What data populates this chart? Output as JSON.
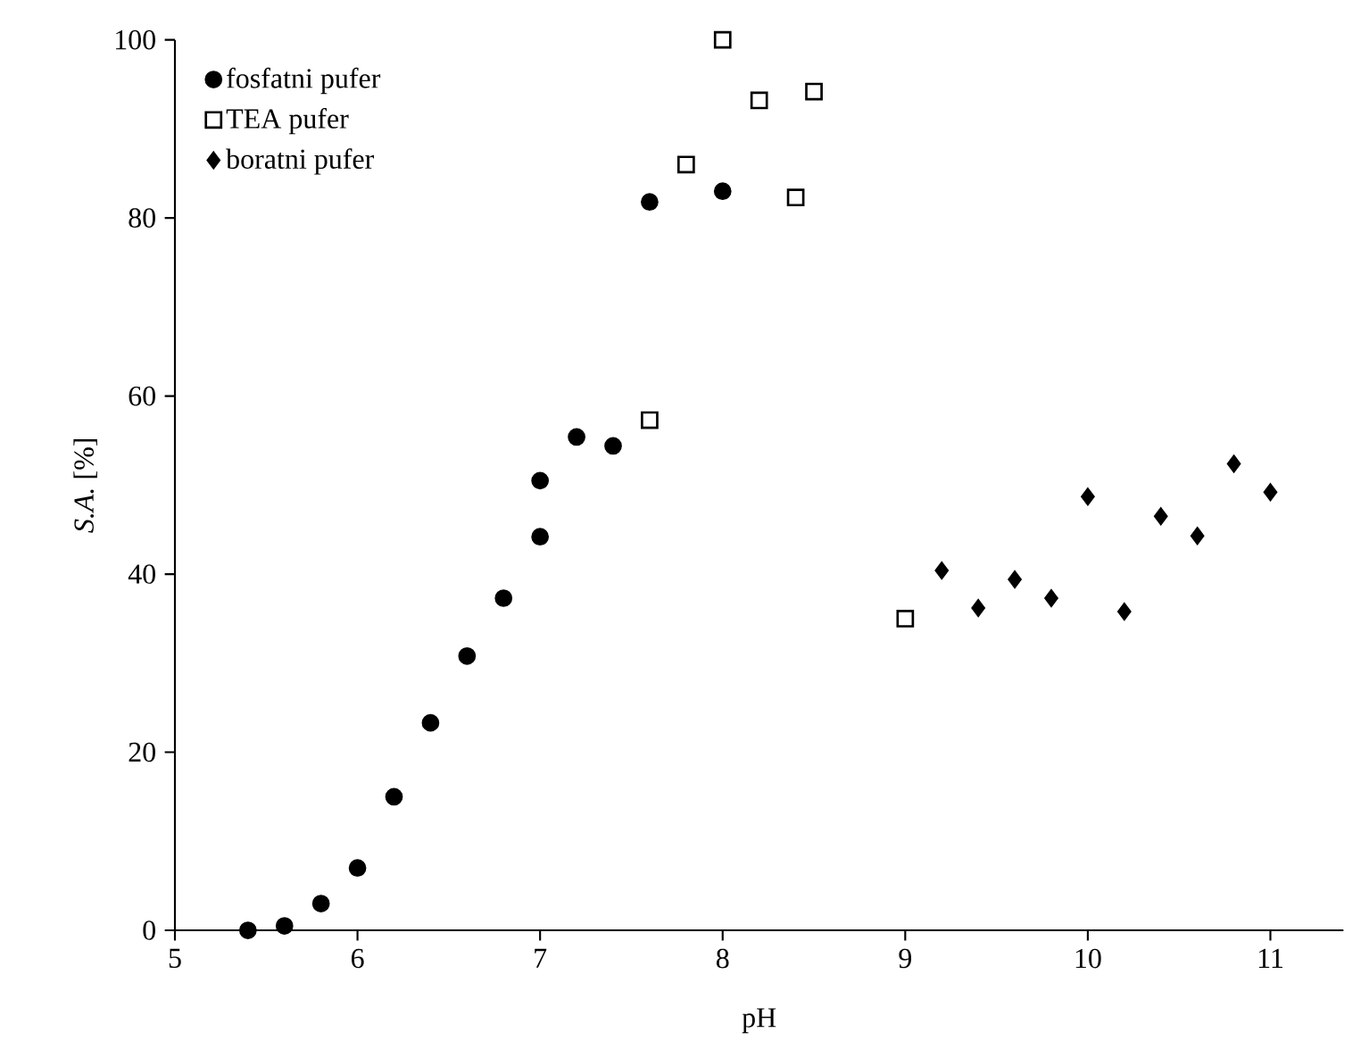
{
  "chart_data": {
    "type": "scatter",
    "xlabel": "pH",
    "ylabel": "*S.A.* [%]",
    "xlim": [
      5,
      11.4
    ],
    "ylim": [
      0,
      100
    ],
    "xticks": [
      5,
      6,
      7,
      8,
      9,
      10,
      11
    ],
    "yticks": [
      0,
      20,
      40,
      60,
      80,
      100
    ],
    "grid": false,
    "legend": "top left",
    "series": [
      {
        "name": "fosfatni pufer",
        "color": "#000000",
        "marker": "circle",
        "x": [
          5.4,
          5.6,
          5.8,
          6.0,
          6.2,
          6.4,
          6.6,
          6.8,
          7.0,
          7.0,
          7.2,
          7.4,
          7.6,
          8.0
        ],
        "values": [
          0,
          0.5,
          3,
          7,
          15,
          23.3,
          30.8,
          37.3,
          44.2,
          50.5,
          55.4,
          54.4,
          81.8,
          83
        ]
      },
      {
        "name": "TEA pufer",
        "color": "#000000",
        "marker": "square",
        "x": [
          7.6,
          7.8,
          8.0,
          8.2,
          8.4,
          8.5,
          9.0
        ],
        "values": [
          57.3,
          86,
          100,
          93.2,
          82.3,
          94.2,
          35
        ]
      },
      {
        "name": "boratni pufer",
        "color": "#000000",
        "marker": "diamond",
        "x": [
          9.2,
          9.4,
          9.6,
          9.8,
          10.0,
          10.2,
          10.4,
          10.6,
          10.8,
          11.0
        ],
        "values": [
          40.4,
          36.2,
          39.4,
          37.3,
          48.7,
          35.8,
          46.5,
          44.3,
          52.4,
          49.2
        ]
      }
    ]
  }
}
